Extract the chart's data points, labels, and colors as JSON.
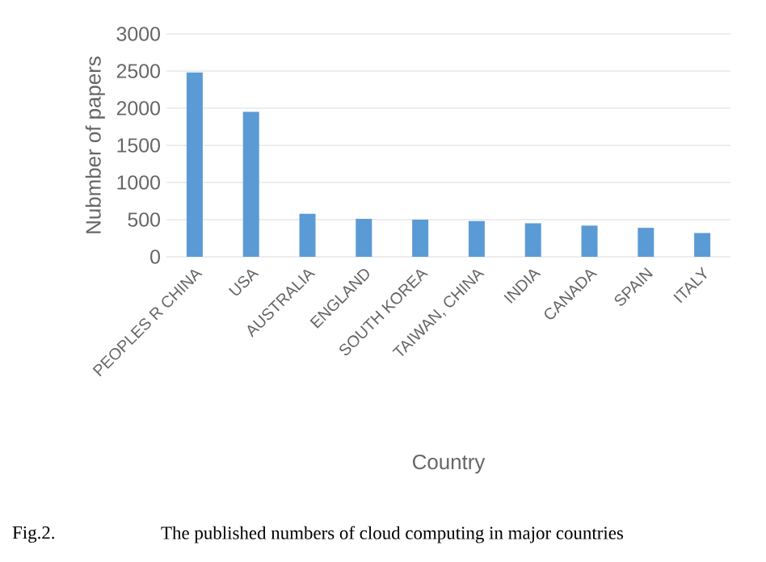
{
  "chart_data": {
    "type": "bar",
    "xlabel": "Country",
    "ylabel": "Nubmber of papers",
    "categories": [
      "PEOPLES R CHINA",
      "USA",
      "AUSTRALIA",
      "ENGLAND",
      "SOUTH KOREA",
      "TAIWAN, CHINA",
      "INDIA",
      "CANADA",
      "SPAIN",
      "ITALY"
    ],
    "values": [
      2480,
      1950,
      580,
      510,
      500,
      480,
      450,
      420,
      390,
      320
    ],
    "color": "#5b9bd5",
    "ylim": [
      0,
      3000
    ],
    "yticks": [
      0,
      500,
      1000,
      1500,
      2000,
      2500,
      3000
    ],
    "grid": "y",
    "annotations": [
      "Fig.2.",
      "The published numbers of cloud computing in major countries"
    ]
  }
}
